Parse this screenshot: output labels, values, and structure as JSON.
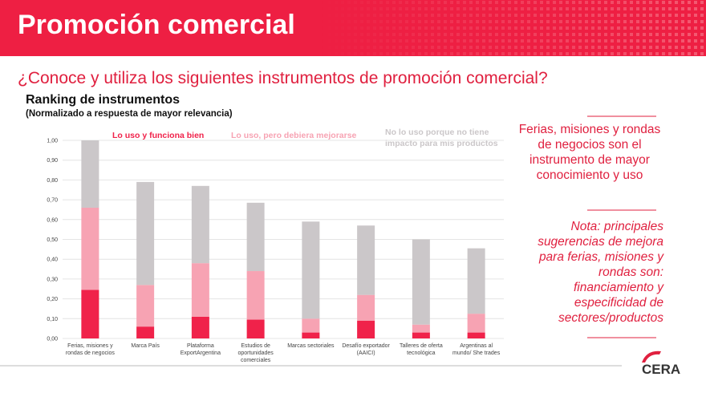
{
  "header": {
    "title": "Promoción comercial"
  },
  "question": "¿Conoce y utiliza los siguientes instrumentos de promoción comercial?",
  "panel": {
    "main": "Ferias, misiones y rondas de negocios son el instrumento de mayor conocimiento y uso",
    "note": "Nota: principales sugerencias de mejora para ferias, misiones y rondas son: financiamiento y especificidad de sectores/productos"
  },
  "logo": "CERA",
  "chart_data": {
    "type": "bar",
    "stacked": true,
    "title": "Ranking de instrumentos",
    "subtitle": "(Normalizado a respuesta de mayor relevancia)",
    "categories": [
      "Ferias, misiones y rondas de negocios",
      "Marca País",
      "Plataforma ExportArgentina",
      "Estudios de oportunidades comerciales",
      "Marcas sectoriales",
      "Desafío exportador (AAICI)",
      "Talleres de oferta tecnológica",
      "Argentinas al mundo/ She trades"
    ],
    "series": [
      {
        "name": "Lo uso y funciona bien",
        "color": "#f0224a",
        "values": [
          0.245,
          0.06,
          0.11,
          0.095,
          0.03,
          0.09,
          0.03,
          0.03
        ]
      },
      {
        "name": "Lo uso, pero debiera mejorarse",
        "color": "#f7a3b3",
        "values": [
          0.415,
          0.21,
          0.27,
          0.245,
          0.07,
          0.13,
          0.04,
          0.095
        ]
      },
      {
        "name": "No lo uso porque no tiene impacto para mis productos",
        "color": "#cbc7c9",
        "values": [
          0.34,
          0.52,
          0.39,
          0.345,
          0.49,
          0.35,
          0.43,
          0.33
        ]
      }
    ],
    "ylim": [
      0,
      1
    ],
    "yticks": [
      {
        "value": 0,
        "label": "0,00"
      },
      {
        "value": 0.1,
        "label": "0,10"
      },
      {
        "value": 0.2,
        "label": "0,20"
      },
      {
        "value": 0.3,
        "label": "0,30"
      },
      {
        "value": 0.4,
        "label": "0,40"
      },
      {
        "value": 0.5,
        "label": "0,50"
      },
      {
        "value": 0.6,
        "label": "0,60"
      },
      {
        "value": 0.7,
        "label": "0,70"
      },
      {
        "value": 0.8,
        "label": "0,80"
      },
      {
        "value": 0.9,
        "label": "0,90"
      },
      {
        "value": 1,
        "label": "1,00"
      }
    ],
    "grid": true
  }
}
